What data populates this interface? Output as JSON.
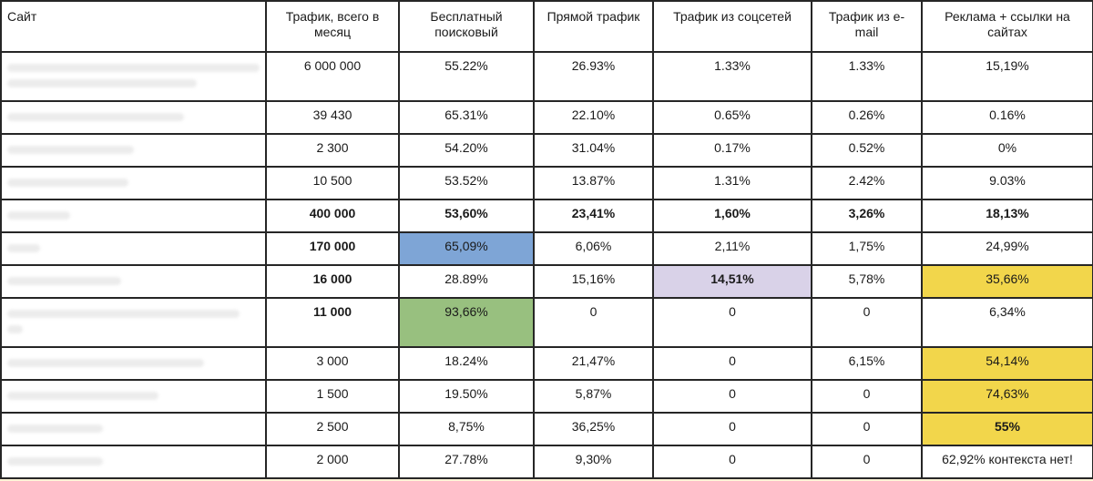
{
  "header": {
    "site": "Сайт",
    "total": "Трафик, всего в месяц",
    "organic": "Бесплатный поисковый",
    "direct": "Прямой трафик",
    "social": "Трафик из соцсетей",
    "email": "Трафик из e-mail",
    "ads": "Реклама + ссылки на сайтах"
  },
  "rows": [
    {
      "site": "",
      "total": "6 000 000",
      "organic": "55.22%",
      "direct": "26.93%",
      "social": "1.33%",
      "email": "1.33%",
      "ads": "15,19%"
    },
    {
      "site": "",
      "total": "39 430",
      "organic": "65.31%",
      "direct": "22.10%",
      "social": "0.65%",
      "email": "0.26%",
      "ads": "0.16%"
    },
    {
      "site": "",
      "total": "2 300",
      "organic": "54.20%",
      "direct": "31.04%",
      "social": "0.17%",
      "email": "0.52%",
      "ads": "0%"
    },
    {
      "site": "",
      "total": "10  500",
      "organic": "53.52%",
      "direct": "13.87%",
      "social": "1.31%",
      "email": "2.42%",
      "ads": "9.03%"
    },
    {
      "site": "",
      "total": "400 000",
      "organic": "53,60%",
      "direct": "23,41%",
      "social": "1,60%",
      "email": "3,26%",
      "ads": "18,13%"
    },
    {
      "site": "",
      "total": "170 000",
      "organic": "65,09%",
      "direct": "6,06%",
      "social": "2,11%",
      "email": "1,75%",
      "ads": "24,99%"
    },
    {
      "site": "",
      "total": "16 000",
      "organic": "28.89%",
      "direct": "15,16%",
      "social": "14,51%",
      "email": "5,78%",
      "ads": "35,66%"
    },
    {
      "site": "",
      "total": "11 000",
      "organic": "93,66%",
      "direct": "0",
      "social": "0",
      "email": "0",
      "ads": "6,34%"
    },
    {
      "site": "",
      "total": "3 000",
      "organic": "18.24%",
      "direct": "21,47%",
      "social": "0",
      "email": "6,15%",
      "ads": "54,14%"
    },
    {
      "site": "",
      "total": "1 500",
      "organic": "19.50%",
      "direct": "5,87%",
      "social": "0",
      "email": "0",
      "ads": "74,63%"
    },
    {
      "site": "",
      "total": "2 500",
      "organic": "8,75%",
      "direct": "36,25%",
      "social": "0",
      "email": "0",
      "ads": "55%"
    },
    {
      "site": "",
      "total": "2 000",
      "organic": "27.78%",
      "direct": "9,30%",
      "social": "0",
      "email": "0",
      "ads": "62,92% контекста нет!"
    }
  ],
  "highlight_colors": {
    "blue": "#7ea5d6",
    "green": "#98c07f",
    "lavender": "#d9d2e8",
    "yellow": "#f2d64b"
  }
}
